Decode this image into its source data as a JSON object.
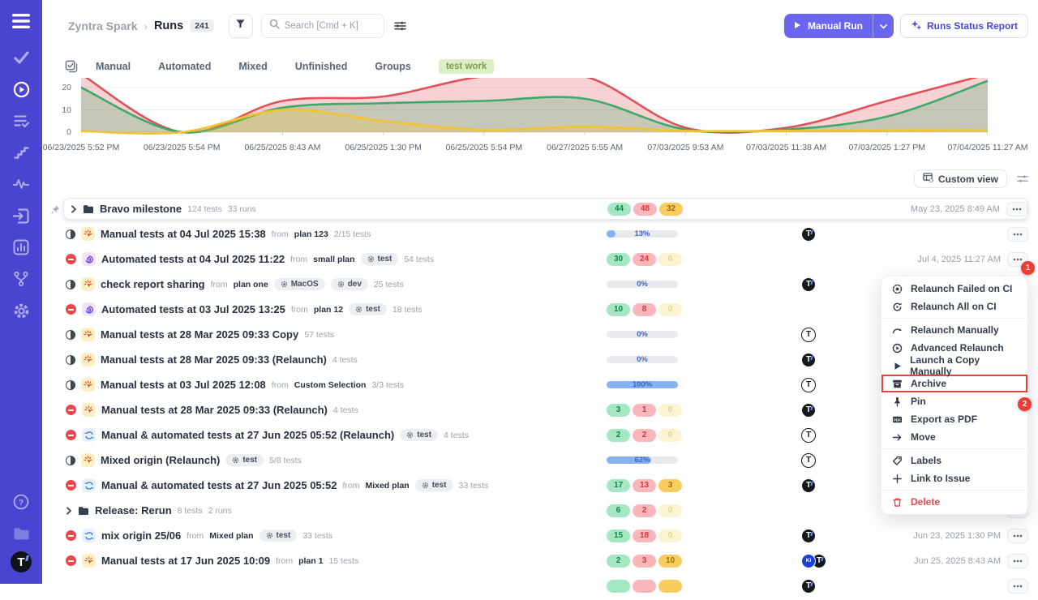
{
  "header": {
    "project": "Zyntra Spark",
    "page": "Runs",
    "count": "241",
    "search_placeholder": "Search [Cmd + K]",
    "manual_run_label": "Manual Run",
    "runs_status_report_label": "Runs Status Report"
  },
  "labels": {
    "from": "from"
  },
  "filters": {
    "tabs": [
      "Manual",
      "Automated",
      "Mixed",
      "Unfinished",
      "Groups"
    ],
    "active_tag": "test work"
  },
  "chart_data": {
    "type": "area",
    "x": [
      "06/23/2025 5:52 PM",
      "06/23/2025 5:54 PM",
      "06/25/2025 8:43 AM",
      "06/25/2025 1:30 PM",
      "06/25/2025 5:54 PM",
      "06/27/2025 5:55 AM",
      "07/03/2025 9:53 AM",
      "07/03/2025 11:38 AM",
      "07/03/2025 1:27 PM",
      "07/04/2025 11:27 AM"
    ],
    "series": [
      {
        "name": "red",
        "color": "#E0525A",
        "values": [
          26,
          0,
          14,
          16,
          25,
          25,
          2,
          2,
          14,
          26
        ]
      },
      {
        "name": "green",
        "color": "#3FA968",
        "values": [
          20,
          0,
          11,
          13,
          14,
          15,
          1.2,
          1.2,
          7,
          23
        ]
      },
      {
        "name": "yellow",
        "color": "#F2C230",
        "values": [
          0.5,
          0,
          10,
          5,
          1,
          2.5,
          0.6,
          0.6,
          0.8,
          1
        ]
      }
    ],
    "ylim": [
      0,
      20
    ],
    "yticks": [
      0,
      10,
      20
    ],
    "grid": true,
    "legend": "none"
  },
  "toolbar": {
    "custom_view_label": "Custom view"
  },
  "rows": [
    {
      "type": "folder",
      "card": true,
      "pinned": true,
      "title": "Bravo milestone",
      "tests": "124 tests",
      "runs_meta": "33 runs",
      "badges": [
        "44",
        "48",
        "32"
      ],
      "date": "May 23, 2025 8:49 AM"
    },
    {
      "type": "run",
      "status": "inprogress",
      "run_kind": "manual",
      "title": "Manual tests at 04 Jul 2025 15:38",
      "from": "plan 123",
      "tests": "2/15 tests",
      "bar": "13%",
      "avatars": [
        "t-filled"
      ]
    },
    {
      "type": "run",
      "status": "failed",
      "run_kind": "automated",
      "title": "Automated tests at 04 Jul 2025 11:22",
      "from": "small plan",
      "tags": [
        "test"
      ],
      "tests": "54 tests",
      "badges": [
        "30",
        "24",
        "0"
      ],
      "date": "Jul 4, 2025 11:27 AM"
    },
    {
      "type": "run",
      "status": "inprogress",
      "run_kind": "manual",
      "title": "check report sharing",
      "from": "plan one",
      "tags": [
        "MacOS",
        "dev"
      ],
      "tests": "25 tests",
      "bar": "0%",
      "avatars": [
        "t-filled"
      ]
    },
    {
      "type": "run",
      "status": "failed",
      "run_kind": "automated",
      "title": "Automated tests at 03 Jul 2025 13:25",
      "from": "plan 12",
      "tags": [
        "test"
      ],
      "tests": "18 tests",
      "badges": [
        "10",
        "8",
        "0"
      ]
    },
    {
      "type": "run",
      "status": "inprogress",
      "run_kind": "manual",
      "title": "Manual tests at 28 Mar 2025 09:33 Copy",
      "tests": "57 tests",
      "bar": "0%",
      "avatars": [
        "t-outline"
      ]
    },
    {
      "type": "run",
      "status": "inprogress",
      "run_kind": "manual",
      "title": "Manual tests at 28 Mar 2025 09:33 (Relaunch)",
      "tests": "4 tests",
      "bar": "0%",
      "avatars": [
        "t-filled"
      ]
    },
    {
      "type": "run",
      "status": "inprogress",
      "run_kind": "manual",
      "title": "Manual tests at 03 Jul 2025 12:08",
      "from": "Custom Selection",
      "tests": "3/3 tests",
      "bar": "100%",
      "avatars": [
        "t-outline"
      ]
    },
    {
      "type": "run",
      "status": "failed",
      "run_kind": "manual",
      "title": "Manual tests at 28 Mar 2025 09:33 (Relaunch)",
      "tests": "4 tests",
      "badges": [
        "3",
        "1",
        "0"
      ],
      "avatars": [
        "t-filled"
      ]
    },
    {
      "type": "run",
      "status": "failed",
      "run_kind": "mixed",
      "title": "Manual & automated tests at 27 Jun 2025 05:52 (Relaunch)",
      "tags": [
        "test"
      ],
      "tests": "4 tests",
      "badges": [
        "2",
        "2",
        "0"
      ],
      "avatars": [
        "t-outline"
      ]
    },
    {
      "type": "run",
      "status": "inprogress",
      "run_kind": "manual",
      "title": "Mixed origin (Relaunch)",
      "tags": [
        "test"
      ],
      "tests": "5/8 tests",
      "bar": "62%",
      "avatars": [
        "t-outline"
      ]
    },
    {
      "type": "run",
      "status": "failed",
      "run_kind": "mixed",
      "title": "Manual & automated tests at 27 Jun 2025 05:52",
      "from": "Mixed plan",
      "tags": [
        "test"
      ],
      "tests": "33 tests",
      "badges": [
        "17",
        "13",
        "3"
      ],
      "avatars": [
        "t-filled"
      ]
    },
    {
      "type": "folder",
      "title": "Release: Rerun",
      "tests": "8 tests",
      "runs_meta": "2 runs",
      "badges": [
        "6",
        "2",
        "0"
      ]
    },
    {
      "type": "run",
      "status": "failed",
      "run_kind": "mixed",
      "title": "mix origin 25/06",
      "from": "Mixed plan",
      "tags": [
        "test"
      ],
      "tests": "33 tests",
      "badges": [
        "15",
        "18",
        "0"
      ],
      "avatars": [
        "t-filled"
      ],
      "date": "Jun 23, 2025 1:30 PM"
    },
    {
      "type": "run",
      "status": "failed",
      "run_kind": "manual",
      "title": "Manual tests at 17 Jun 2025 10:09",
      "from": "plan 1",
      "tests": "15 tests",
      "badges": [
        "2",
        "3",
        "10"
      ],
      "avatars": [
        "ki",
        "t-filled"
      ],
      "date": "Jun 25, 2025 8:43 AM"
    },
    {
      "type": "run",
      "partial": true,
      "badges": [
        "",
        "",
        ""
      ],
      "avatars": [
        "t-filled"
      ]
    }
  ],
  "context_menu": {
    "items": [
      {
        "icon": "relaunch-failed-ci-icon",
        "label": "Relaunch Failed on CI"
      },
      {
        "icon": "relaunch-all-ci-icon",
        "label": "Relaunch All on CI"
      },
      {
        "divider": true
      },
      {
        "icon": "relaunch-manually-icon",
        "label": "Relaunch Manually"
      },
      {
        "icon": "advanced-relaunch-icon",
        "label": "Advanced Relaunch"
      },
      {
        "icon": "launch-copy-icon",
        "label": "Launch a Copy Manually"
      },
      {
        "icon": "archive-icon",
        "label": "Archive",
        "highlighted": true
      },
      {
        "icon": "pin-icon",
        "label": "Pin"
      },
      {
        "icon": "export-pdf-icon",
        "label": "Export as PDF"
      },
      {
        "icon": "move-icon",
        "label": "Move"
      },
      {
        "divider": true
      },
      {
        "icon": "labels-icon",
        "label": "Labels"
      },
      {
        "icon": "link-issue-icon",
        "label": "Link to Issue"
      },
      {
        "divider": true
      },
      {
        "icon": "delete-icon",
        "label": "Delete",
        "danger": true
      }
    ]
  },
  "annotations": {
    "step_1": "1",
    "step_2": "2"
  }
}
